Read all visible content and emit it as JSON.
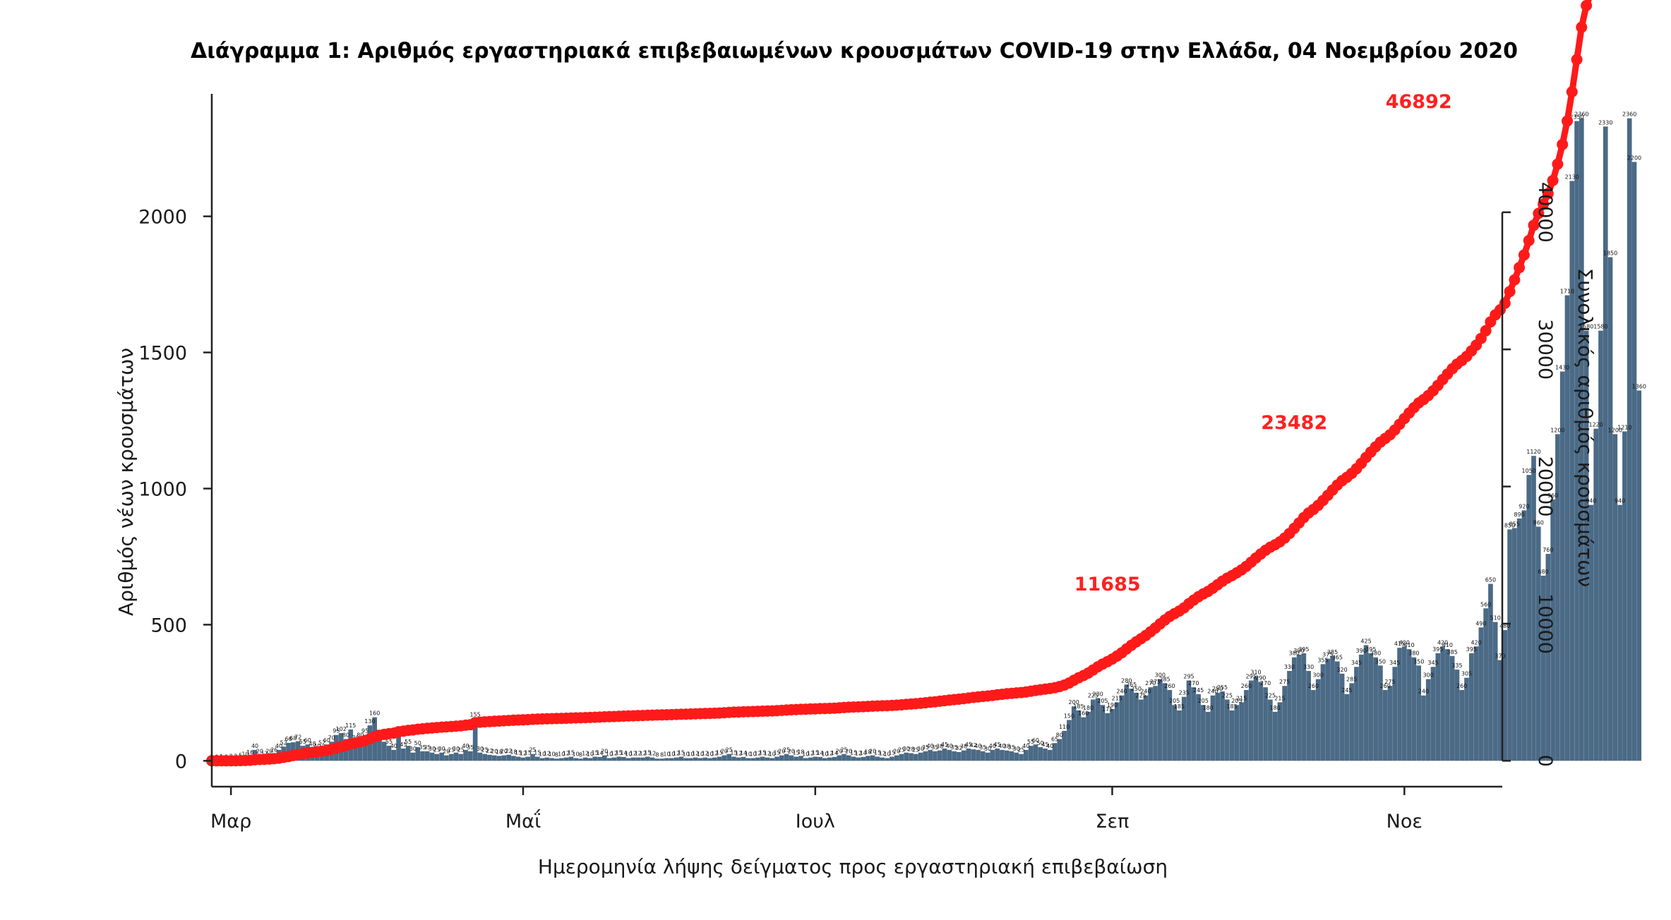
{
  "chart_data": {
    "type": "bar",
    "title": "Διάγραμμα 1: Αριθμός εργαστηριακά επιβεβαιωμένων κρουσμάτων COVID-19 στην Ελλάδα, 04 Νοεμβρίου 2020",
    "xlabel": "Ημερομηνία λήψης δείγματος προς εργαστηριακή επιβεβαίωση",
    "ylabel": "Αριθμός νέων κρουσμάτων",
    "y2label": "Συνολικός αριθμός κρουσμάτων",
    "x_tick_labels": [
      "Μαρ",
      "Μαΐ",
      "Ιουλ",
      "Σεπ",
      "Νοε"
    ],
    "x_tick_dates": [
      "2020-03-01",
      "2020-05-01",
      "2020-07-01",
      "2020-09-01",
      "2020-11-01"
    ],
    "x_range": [
      "2020-02-26",
      "2020-11-21"
    ],
    "ylim": [
      -95,
      2450
    ],
    "yticks": [
      0,
      500,
      1000,
      1500,
      2000
    ],
    "y2lim": [
      0,
      40000
    ],
    "y2ticks": [
      0,
      10000,
      20000,
      30000,
      40000
    ],
    "grid": false,
    "series": [
      {
        "kind": "bar",
        "color": "#4a6a86",
        "start_date": "2020-02-26",
        "values": [
          1,
          0,
          1,
          0,
          2,
          2,
          5,
          10,
          16,
          40,
          20,
          12,
          20,
          26,
          40,
          52,
          66,
          68,
          72,
          55,
          60,
          48,
          40,
          52,
          60,
          70,
          95,
          102,
          80,
          115,
          70,
          80,
          95,
          130,
          160,
          90,
          70,
          55,
          40,
          100,
          45,
          55,
          30,
          50,
          35,
          35,
          30,
          25,
          30,
          20,
          25,
          30,
          25,
          40,
          35,
          155,
          30,
          25,
          22,
          20,
          18,
          20,
          22,
          18,
          15,
          12,
          15,
          25,
          15,
          10,
          12,
          10,
          8,
          10,
          12,
          15,
          10,
          8,
          12,
          10,
          15,
          14,
          20,
          10,
          12,
          15,
          14,
          10,
          12,
          12,
          12,
          15,
          12,
          8,
          8,
          10,
          10,
          12,
          15,
          10,
          10,
          12,
          10,
          12,
          10,
          12,
          15,
          20,
          25,
          15,
          12,
          14,
          10,
          10,
          12,
          15,
          12,
          10,
          15,
          20,
          25,
          20,
          15,
          18,
          10,
          12,
          15,
          14,
          10,
          12,
          14,
          20,
          25,
          20,
          15,
          12,
          14,
          18,
          20,
          15,
          12,
          10,
          15,
          20,
          25,
          30,
          28,
          25,
          30,
          35,
          40,
          35,
          38,
          45,
          40,
          35,
          32,
          38,
          45,
          42,
          40,
          35,
          30,
          40,
          45,
          40,
          38,
          35,
          30,
          25,
          40,
          55,
          60,
          50,
          45,
          40,
          65,
          80,
          110,
          150,
          200,
          185,
          160,
          180,
          225,
          230,
          205,
          175,
          190,
          215,
          240,
          280,
          265,
          250,
          225,
          240,
          270,
          275,
          300,
          285,
          260,
          205,
          185,
          235,
          295,
          270,
          245,
          205,
          180,
          240,
          250,
          255,
          225,
          185,
          205,
          215,
          260,
          295,
          310,
          290,
          270,
          225,
          180,
          215,
          275,
          330,
          380,
          390,
          395,
          330,
          260,
          300,
          355,
          375,
          385,
          365,
          320,
          245,
          285,
          345,
          390,
          425,
          395,
          380,
          350,
          260,
          275,
          345,
          415,
          420,
          410,
          380,
          350,
          240,
          300,
          345,
          395,
          420,
          410,
          385,
          335,
          260,
          305,
          395,
          420,
          490,
          560,
          650,
          510,
          370,
          480,
          850,
          855,
          890,
          920,
          1050,
          1120,
          860,
          680,
          760,
          960,
          1200,
          1430,
          1710,
          2130,
          2350,
          2360,
          1580,
          940,
          1220,
          1580,
          2330,
          1850,
          1200,
          940,
          1210,
          2360,
          2200,
          1360
        ],
        "labels_note": "daily counts as printed above each bar"
      },
      {
        "kind": "line",
        "color": "#ff1a1a",
        "axis": "right",
        "cumulative_of": "bars"
      }
    ],
    "annotations": [
      {
        "text": "11685",
        "date": "2020-08-31",
        "y2": 11685
      },
      {
        "text": "23482",
        "date": "2020-10-09",
        "y2": 23482
      },
      {
        "text": "46892",
        "date": "2020-11-04",
        "y2": 46892
      }
    ]
  }
}
